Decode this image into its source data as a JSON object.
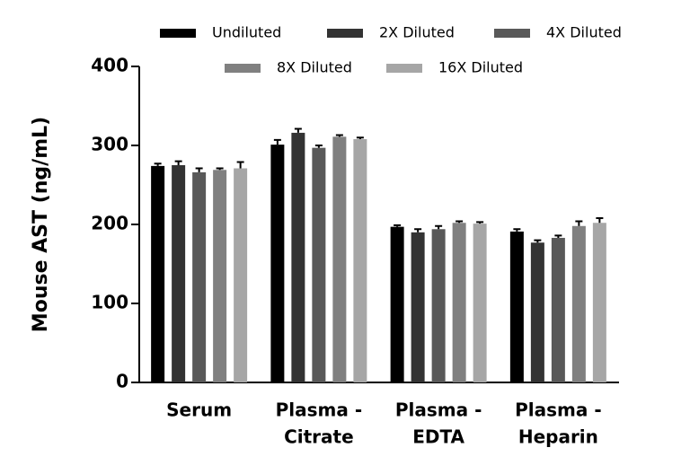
{
  "chart_data": {
    "type": "bar",
    "y_label": "Mouse AST (ng/mL)",
    "categories": [
      [
        "Serum"
      ],
      [
        "Plasma -",
        "Citrate"
      ],
      [
        "Plasma -",
        "EDTA"
      ],
      [
        "Plasma -",
        "Heparin"
      ]
    ],
    "series": [
      {
        "name": "Undiluted",
        "color": "#000000",
        "values": [
          274,
          301,
          197,
          191
        ],
        "errors": [
          3,
          6,
          2,
          3
        ]
      },
      {
        "name": "2X Diluted",
        "color": "#333333",
        "values": [
          275,
          316,
          190,
          177
        ],
        "errors": [
          5,
          5,
          4,
          3
        ]
      },
      {
        "name": "4X Diluted",
        "color": "#595959",
        "values": [
          266,
          297,
          194,
          183
        ],
        "errors": [
          5,
          3,
          4,
          3
        ]
      },
      {
        "name": "8X Diluted",
        "color": "#808080",
        "values": [
          269,
          311,
          202,
          198
        ],
        "errors": [
          2,
          2,
          2,
          6
        ]
      },
      {
        "name": "16X Diluted",
        "color": "#a6a6a6",
        "values": [
          271,
          308,
          201,
          202
        ],
        "errors": [
          8,
          2,
          2,
          6
        ]
      }
    ],
    "ylim": [
      0,
      400
    ],
    "yticks": [
      0,
      100,
      200,
      300,
      400
    ],
    "grid": false
  }
}
